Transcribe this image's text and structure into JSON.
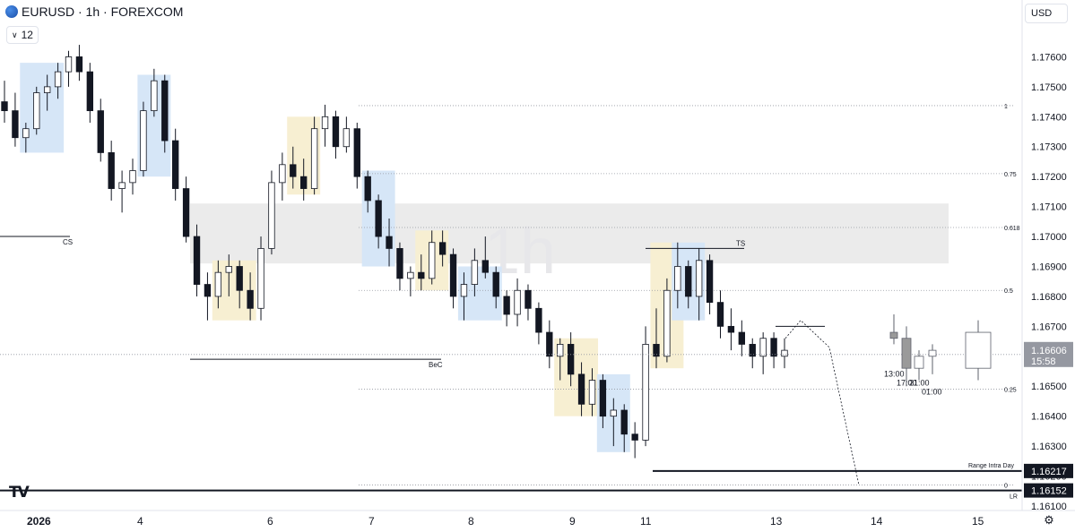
{
  "header": {
    "symbol_line": "EURUSD · 1h · FOREXCOM",
    "interval_badge": "12",
    "currency": "USD"
  },
  "watermark": "1h",
  "price_axis": {
    "ticks": [
      "1.17600",
      "1.17500",
      "1.17400",
      "1.17300",
      "1.17200",
      "1.17100",
      "1.17000",
      "1.16900",
      "1.16800",
      "1.16700",
      "1.16600",
      "1.16500",
      "1.16400",
      "1.16300",
      "1.16200",
      "1.16100"
    ],
    "current_price": "1.16606",
    "countdown": "15:58",
    "labels": [
      {
        "text": "1.16217",
        "value": 1.16217
      },
      {
        "text": "1.16152",
        "value": 1.16152
      }
    ]
  },
  "time_axis": {
    "ticks": [
      {
        "label": "2026",
        "bold": true
      },
      {
        "label": "4"
      },
      {
        "label": "6"
      },
      {
        "label": "7"
      },
      {
        "label": "8"
      },
      {
        "label": "9"
      },
      {
        "label": "11"
      },
      {
        "label": "13"
      },
      {
        "label": "14"
      },
      {
        "label": "15"
      }
    ]
  },
  "fib_levels": [
    {
      "label": "1",
      "value": 1.17437
    },
    {
      "label": "0.75",
      "value": 1.1721
    },
    {
      "label": "0.618",
      "value": 1.1703
    },
    {
      "label": "0.5",
      "value": 1.1682
    },
    {
      "label": "0.25",
      "value": 1.1649
    },
    {
      "label": "0",
      "value": 1.1617
    }
  ],
  "annotations": [
    {
      "text": "CS",
      "value": 1.17
    },
    {
      "text": "BeC",
      "value": 1.1659
    },
    {
      "text": "TS",
      "value": 1.1696
    },
    {
      "text": "Range Intra Day",
      "value": 1.16217
    },
    {
      "text": "LR",
      "value": 1.16152
    }
  ],
  "forecast_times": [
    "13:00",
    "17:00",
    "21:00",
    "01:00"
  ],
  "chart_data": {
    "type": "candlestick",
    "symbol": "EURUSD",
    "interval": "1h",
    "ylim": [
      1.1608,
      1.1767
    ],
    "y_ticks": [
      1.176,
      1.175,
      1.174,
      1.173,
      1.172,
      1.171,
      1.17,
      1.169,
      1.168,
      1.167,
      1.166,
      1.165,
      1.164,
      1.163,
      1.162,
      1.161
    ],
    "last_price": 1.16606,
    "colors": {
      "up": "#ffffff",
      "down": "#131722",
      "wick": "#131722",
      "zone": "#ebebeb",
      "blue_zone": "#d6e6f7",
      "yellow_zone": "#f7efd2"
    },
    "candles": [
      [
        1.1745,
        1.1752,
        1.1738,
        1.1742
      ],
      [
        1.1742,
        1.1748,
        1.173,
        1.1733
      ],
      [
        1.1733,
        1.1738,
        1.1728,
        1.1736
      ],
      [
        1.1736,
        1.175,
        1.1734,
        1.1748
      ],
      [
        1.1748,
        1.1754,
        1.1742,
        1.175
      ],
      [
        1.175,
        1.1758,
        1.1746,
        1.1755
      ],
      [
        1.1755,
        1.1762,
        1.175,
        1.176
      ],
      [
        1.176,
        1.1764,
        1.1752,
        1.1755
      ],
      [
        1.1755,
        1.1758,
        1.1738,
        1.1742
      ],
      [
        1.1742,
        1.1746,
        1.1725,
        1.1728
      ],
      [
        1.1728,
        1.1732,
        1.1712,
        1.1716
      ],
      [
        1.1716,
        1.1722,
        1.1708,
        1.1718
      ],
      [
        1.1718,
        1.1726,
        1.1714,
        1.1722
      ],
      [
        1.1722,
        1.1745,
        1.172,
        1.1742
      ],
      [
        1.1742,
        1.1756,
        1.174,
        1.1752
      ],
      [
        1.1752,
        1.1754,
        1.1728,
        1.1732
      ],
      [
        1.1732,
        1.1736,
        1.1712,
        1.1716
      ],
      [
        1.1716,
        1.172,
        1.1698,
        1.17
      ],
      [
        1.17,
        1.1704,
        1.168,
        1.1684
      ],
      [
        1.1684,
        1.1688,
        1.1672,
        1.168
      ],
      [
        1.168,
        1.1692,
        1.1676,
        1.1688
      ],
      [
        1.1688,
        1.1694,
        1.168,
        1.169
      ],
      [
        1.169,
        1.1692,
        1.1676,
        1.1682
      ],
      [
        1.1682,
        1.1688,
        1.1672,
        1.1676
      ],
      [
        1.1676,
        1.17,
        1.1672,
        1.1696
      ],
      [
        1.1696,
        1.1722,
        1.1694,
        1.1718
      ],
      [
        1.1718,
        1.1728,
        1.1712,
        1.1724
      ],
      [
        1.1724,
        1.173,
        1.1716,
        1.172
      ],
      [
        1.172,
        1.1726,
        1.1712,
        1.1716
      ],
      [
        1.1716,
        1.174,
        1.1714,
        1.1736
      ],
      [
        1.1736,
        1.1744,
        1.173,
        1.174
      ],
      [
        1.174,
        1.1742,
        1.1726,
        1.173
      ],
      [
        1.173,
        1.174,
        1.1728,
        1.1736
      ],
      [
        1.1736,
        1.1738,
        1.1716,
        1.172
      ],
      [
        1.172,
        1.1722,
        1.1708,
        1.1712
      ],
      [
        1.1712,
        1.1714,
        1.1696,
        1.17
      ],
      [
        1.17,
        1.1706,
        1.169,
        1.1696
      ],
      [
        1.1696,
        1.1698,
        1.1682,
        1.1686
      ],
      [
        1.1686,
        1.169,
        1.168,
        1.1688
      ],
      [
        1.1688,
        1.1694,
        1.1682,
        1.1686
      ],
      [
        1.1686,
        1.1702,
        1.1684,
        1.1698
      ],
      [
        1.1698,
        1.1702,
        1.169,
        1.1694
      ],
      [
        1.1694,
        1.1696,
        1.1676,
        1.168
      ],
      [
        1.168,
        1.1688,
        1.1672,
        1.1684
      ],
      [
        1.1684,
        1.1696,
        1.168,
        1.1692
      ],
      [
        1.1692,
        1.17,
        1.1686,
        1.1688
      ],
      [
        1.1688,
        1.169,
        1.1676,
        1.168
      ],
      [
        1.168,
        1.1682,
        1.167,
        1.1674
      ],
      [
        1.1674,
        1.1686,
        1.167,
        1.1682
      ],
      [
        1.1682,
        1.1684,
        1.1672,
        1.1676
      ],
      [
        1.1676,
        1.1678,
        1.1664,
        1.1668
      ],
      [
        1.1668,
        1.1672,
        1.1656,
        1.166
      ],
      [
        1.166,
        1.1666,
        1.1652,
        1.1664
      ],
      [
        1.1664,
        1.1668,
        1.165,
        1.1654
      ],
      [
        1.1654,
        1.1658,
        1.164,
        1.1644
      ],
      [
        1.1644,
        1.1656,
        1.164,
        1.1652
      ],
      [
        1.1652,
        1.1654,
        1.1636,
        1.164
      ],
      [
        1.164,
        1.1646,
        1.163,
        1.1642
      ],
      [
        1.1642,
        1.1644,
        1.1628,
        1.1634
      ],
      [
        1.1634,
        1.1638,
        1.1626,
        1.1632
      ],
      [
        1.1632,
        1.167,
        1.163,
        1.1664
      ],
      [
        1.1664,
        1.1676,
        1.1656,
        1.166
      ],
      [
        1.166,
        1.1686,
        1.1658,
        1.1682
      ],
      [
        1.1682,
        1.1698,
        1.1676,
        1.169
      ],
      [
        1.169,
        1.1692,
        1.1676,
        1.168
      ],
      [
        1.168,
        1.1696,
        1.1672,
        1.1692
      ],
      [
        1.1692,
        1.1694,
        1.1674,
        1.1678
      ],
      [
        1.1678,
        1.1682,
        1.1666,
        1.167
      ],
      [
        1.167,
        1.1676,
        1.1662,
        1.1668
      ],
      [
        1.1668,
        1.1672,
        1.166,
        1.1664
      ],
      [
        1.1664,
        1.1666,
        1.1656,
        1.166
      ],
      [
        1.166,
        1.1668,
        1.1654,
        1.1666
      ],
      [
        1.1666,
        1.1668,
        1.1656,
        1.166
      ],
      [
        1.166,
        1.1666,
        1.1656,
        1.1662
      ]
    ],
    "forecast_candles": [
      [
        1.1668,
        1.1674,
        1.1664,
        1.1666
      ],
      [
        1.1666,
        1.167,
        1.165,
        1.1656
      ],
      [
        1.1656,
        1.1662,
        1.1652,
        1.166
      ],
      [
        1.166,
        1.1664,
        1.1654,
        1.1662
      ],
      [
        1.1656,
        1.1672,
        1.1652,
        1.1668
      ]
    ],
    "projection_path": [
      1.1666,
      1.1672,
      1.1663,
      1.1617
    ]
  }
}
